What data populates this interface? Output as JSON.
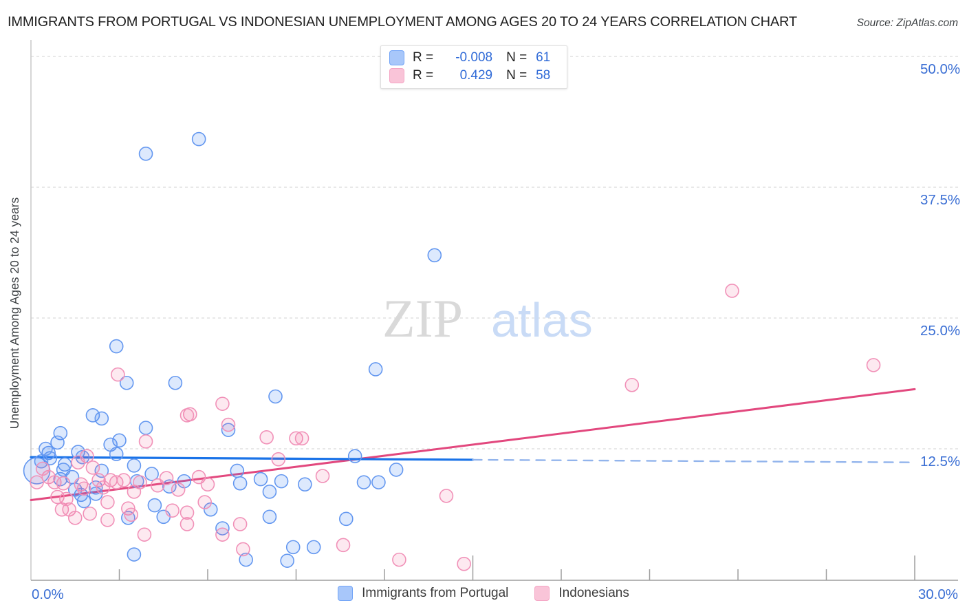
{
  "header": {
    "title": "IMMIGRANTS FROM PORTUGAL VS INDONESIAN UNEMPLOYMENT AMONG AGES 20 TO 24 YEARS CORRELATION CHART",
    "source": "Source: ZipAtlas.com"
  },
  "legend_box": {
    "rows": [
      {
        "r_label": "R =",
        "r_value": "-0.008",
        "n_label": "N =",
        "n_value": "61"
      },
      {
        "r_label": "R =",
        "r_value": "0.429",
        "n_label": "N =",
        "n_value": "58"
      }
    ]
  },
  "bottom_legend": {
    "items": [
      {
        "label": "Immigrants from Portugal"
      },
      {
        "label": "Indonesians"
      }
    ]
  },
  "watermark": {
    "part1": "ZIP",
    "part2": "atlas"
  },
  "axes": {
    "y_title": "Unemployment Among Ages 20 to 24 years",
    "y_ticks": [
      {
        "label": "50.0%",
        "value": 50
      },
      {
        "label": "37.5%",
        "value": 37.5
      },
      {
        "label": "25.0%",
        "value": 25
      },
      {
        "label": "12.5%",
        "value": 12.5
      }
    ],
    "x_min_label": "0.0%",
    "x_max_label": "30.0%",
    "x_minor_ticks": [
      3,
      6,
      9,
      12,
      18,
      21,
      24,
      27
    ],
    "x_major_ticks": [
      15,
      30
    ]
  },
  "colors": {
    "blue_fill": "rgba(66,133,244,0.18)",
    "blue_stroke": "#6397f0",
    "blue_trend": "#1a73e8",
    "blue_trend_dashed": "#92b4ec",
    "pink_fill": "rgba(240,98,146,0.14)",
    "pink_stroke": "#f191b8",
    "pink_trend": "#e2487e",
    "axis_label": "#3b6fd4",
    "grid": "#d9d9d9",
    "axis_line": "#9e9e9e",
    "watermark_zip": "#d9d9d9",
    "watermark_atlas": "#c9dbf6",
    "y_title_color": "#3c4043"
  },
  "chart_data": {
    "type": "scatter",
    "title": "IMMIGRANTS FROM PORTUGAL VS INDONESIAN UNEMPLOYMENT AMONG AGES 20 TO 24 YEARS CORRELATION CHART",
    "xlim": [
      0,
      30
    ],
    "ylim": [
      0,
      50
    ],
    "x_tick_labels_shown": [
      "0.0%",
      "30.0%"
    ],
    "y_tick_labels_shown": [
      "50.0%",
      "37.5%",
      "25.0%",
      "12.5%"
    ],
    "grid": "horizontal-dashed",
    "legend_position": "bottom-center",
    "series": [
      {
        "name": "Immigrants from Portugal",
        "R": -0.008,
        "N": 61,
        "points": [
          [
            5.7,
            42.1
          ],
          [
            3.9,
            40.7
          ],
          [
            13.7,
            31.0
          ],
          [
            11.7,
            20.1
          ],
          [
            2.9,
            22.3
          ],
          [
            3.25,
            18.8
          ],
          [
            4.9,
            18.8
          ],
          [
            8.3,
            17.5
          ],
          [
            2.1,
            15.7
          ],
          [
            2.4,
            15.4
          ],
          [
            1.0,
            14.0
          ],
          [
            0.9,
            13.1
          ],
          [
            3.9,
            14.5
          ],
          [
            3.0,
            13.3
          ],
          [
            2.7,
            12.9
          ],
          [
            2.9,
            12.0
          ],
          [
            0.6,
            12.1
          ],
          [
            0.65,
            11.6
          ],
          [
            0.5,
            12.5
          ],
          [
            0.2,
            10.4,
            19
          ],
          [
            1.6,
            12.2
          ],
          [
            1.75,
            11.7
          ],
          [
            1.15,
            11.0
          ],
          [
            1.4,
            9.8
          ],
          [
            1.0,
            9.6
          ],
          [
            3.5,
            10.9
          ],
          [
            4.1,
            10.1
          ],
          [
            5.2,
            9.4
          ],
          [
            2.2,
            8.8
          ],
          [
            1.7,
            8.1
          ],
          [
            1.8,
            7.5
          ],
          [
            3.3,
            5.9
          ],
          [
            4.5,
            6.0
          ],
          [
            11.0,
            11.8
          ],
          [
            12.4,
            10.5
          ],
          [
            11.3,
            9.3
          ],
          [
            11.8,
            9.3
          ],
          [
            10.7,
            5.8
          ],
          [
            7.0,
            10.4
          ],
          [
            7.1,
            9.2
          ],
          [
            7.8,
            9.6
          ],
          [
            8.1,
            8.4
          ],
          [
            8.5,
            9.4
          ],
          [
            9.3,
            9.1
          ],
          [
            6.7,
            14.3
          ],
          [
            4.2,
            7.1
          ],
          [
            3.6,
            9.4
          ],
          [
            4.7,
            8.9
          ],
          [
            1.1,
            10.5
          ],
          [
            2.4,
            10.4
          ],
          [
            1.5,
            8.6
          ],
          [
            2.2,
            8.2
          ],
          [
            6.5,
            4.9
          ],
          [
            6.1,
            6.7
          ],
          [
            8.1,
            6.0
          ],
          [
            3.5,
            2.4
          ],
          [
            7.3,
            1.9
          ],
          [
            8.7,
            1.8
          ],
          [
            8.9,
            3.1
          ],
          [
            9.6,
            3.1
          ],
          [
            0.35,
            11.3
          ]
        ],
        "trend_solid": [
          [
            0,
            11.7
          ],
          [
            15,
            11.45
          ]
        ],
        "trend_dashed": [
          [
            15,
            11.45
          ],
          [
            30,
            11.2
          ]
        ]
      },
      {
        "name": "Indonesians",
        "R": 0.429,
        "N": 58,
        "points": [
          [
            23.8,
            27.6
          ],
          [
            28.6,
            20.5
          ],
          [
            20.4,
            18.6
          ],
          [
            2.95,
            19.6
          ],
          [
            5.4,
            15.8
          ],
          [
            6.5,
            16.8
          ],
          [
            6.7,
            14.8
          ],
          [
            8.0,
            13.6
          ],
          [
            9.0,
            13.5
          ],
          [
            9.2,
            13.5
          ],
          [
            8.4,
            11.5
          ],
          [
            9.9,
            9.9
          ],
          [
            14.1,
            8.0
          ],
          [
            10.6,
            3.3
          ],
          [
            12.5,
            1.9
          ],
          [
            14.7,
            1.5
          ],
          [
            3.9,
            13.2
          ],
          [
            1.9,
            11.8
          ],
          [
            2.1,
            10.7
          ],
          [
            0.6,
            9.8
          ],
          [
            0.2,
            9.3
          ],
          [
            0.8,
            9.3
          ],
          [
            1.1,
            9.2
          ],
          [
            1.7,
            9.1
          ],
          [
            2.3,
            9.5
          ],
          [
            2.7,
            9.5
          ],
          [
            2.9,
            9.3
          ],
          [
            3.15,
            9.5
          ],
          [
            3.7,
            9.3
          ],
          [
            4.6,
            9.7
          ],
          [
            5.7,
            9.8
          ],
          [
            5.9,
            7.4
          ],
          [
            1.8,
            8.7
          ],
          [
            2.6,
            7.4
          ],
          [
            1.05,
            6.7
          ],
          [
            1.3,
            6.7
          ],
          [
            1.5,
            5.9
          ],
          [
            3.5,
            8.4
          ],
          [
            3.3,
            6.8
          ],
          [
            2.6,
            5.7
          ],
          [
            3.85,
            4.3
          ],
          [
            3.4,
            6.2
          ],
          [
            5.3,
            15.7
          ],
          [
            4.8,
            6.6
          ],
          [
            5.3,
            5.3
          ],
          [
            6.5,
            4.3
          ],
          [
            7.1,
            5.3
          ],
          [
            7.2,
            2.9
          ],
          [
            5.3,
            6.4
          ],
          [
            0.9,
            7.9
          ],
          [
            1.2,
            7.7
          ],
          [
            2.0,
            6.3
          ],
          [
            2.45,
            8.8
          ],
          [
            4.3,
            9.0
          ],
          [
            5.0,
            8.6
          ],
          [
            6.0,
            9.1
          ],
          [
            0.4,
            10.6
          ],
          [
            1.6,
            11.2
          ]
        ],
        "trend_solid": [
          [
            0,
            7.6
          ],
          [
            30,
            18.2
          ]
        ]
      }
    ]
  }
}
